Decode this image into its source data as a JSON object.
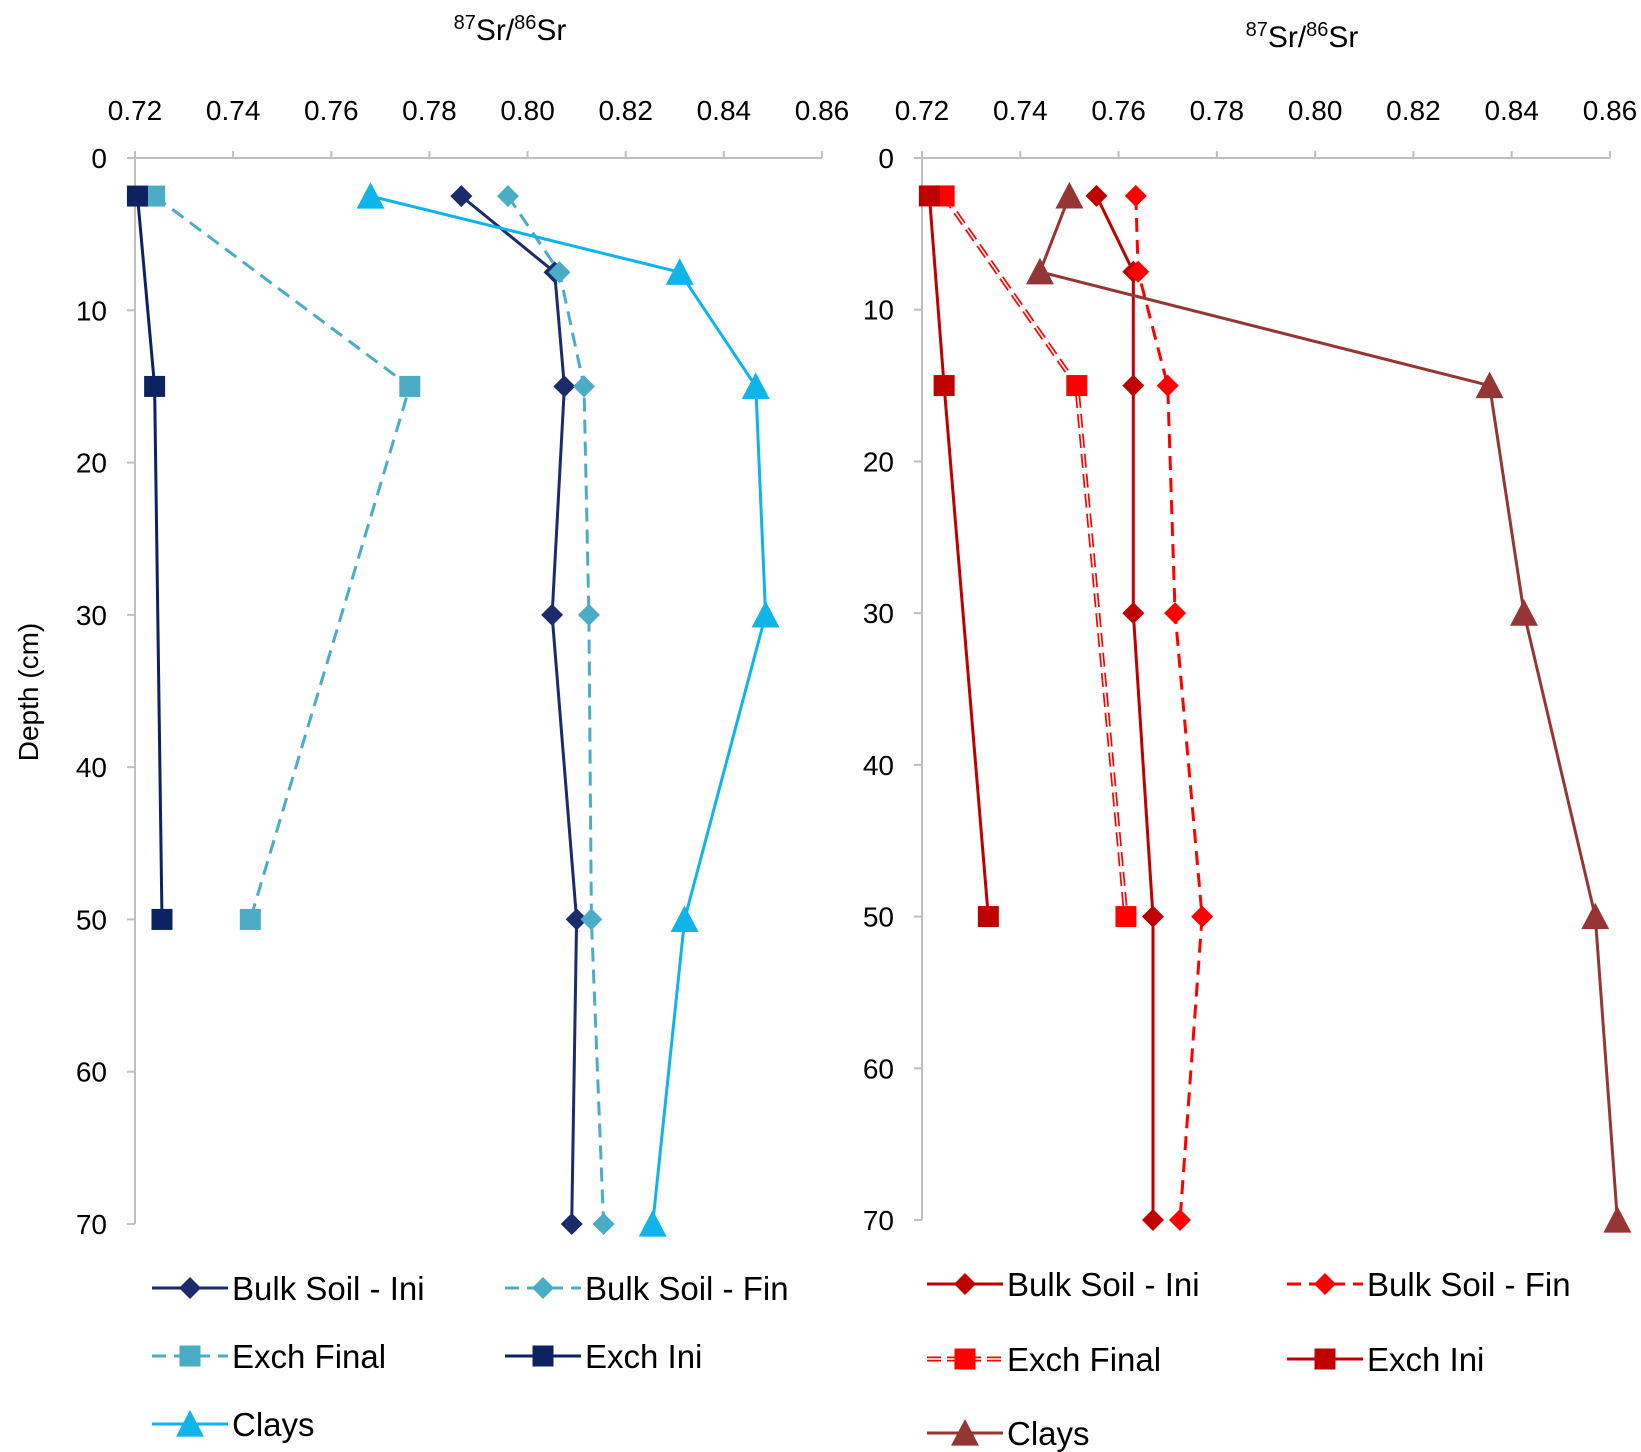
{
  "chart_data": [
    {
      "type": "line",
      "title": "87Sr/86Sr",
      "title_parts": {
        "sup1": "87",
        "base1": "Sr/",
        "sup2": "86",
        "base2": "Sr"
      },
      "xlabel": "",
      "ylabel": "Depth (cm)",
      "x_axis_position": "top",
      "y_reversed": true,
      "xlim": [
        0.72,
        0.86
      ],
      "ylim": [
        0,
        70
      ],
      "x_ticks": [
        "0.72",
        "0.74",
        "0.76",
        "0.78",
        "0.80",
        "0.82",
        "0.84",
        "0.86"
      ],
      "y_ticks": [
        "0",
        "10",
        "20",
        "30",
        "40",
        "50",
        "60",
        "70"
      ],
      "grid": false,
      "legend_position": "bottom",
      "series": [
        {
          "name": "Bulk Soil - Ini",
          "color": "#1a2c6b",
          "marker": "diamond",
          "dash": "solid",
          "points": [
            [
              0.7865,
              2.5
            ],
            [
              0.8055,
              7.5
            ],
            [
              0.8075,
              15
            ],
            [
              0.805,
              30
            ],
            [
              0.81,
              50
            ],
            [
              0.809,
              70
            ]
          ]
        },
        {
          "name": "Bulk Soil - Fin",
          "color": "#4bacc6",
          "marker": "diamond",
          "dash": "dashed",
          "points": [
            [
              0.796,
              2.5
            ],
            [
              0.8065,
              7.5
            ],
            [
              0.8115,
              15
            ],
            [
              0.8125,
              30
            ],
            [
              0.813,
              50
            ],
            [
              0.8155,
              70
            ]
          ]
        },
        {
          "name": "Exch Final",
          "color": "#4bacc6",
          "marker": "square",
          "dash": "dashed",
          "points": [
            [
              0.724,
              2.5
            ],
            [
              0.776,
              15
            ],
            [
              0.7435,
              50
            ]
          ]
        },
        {
          "name": "Exch Ini",
          "color": "#0d2260",
          "marker": "square",
          "dash": "solid",
          "points": [
            [
              0.7205,
              2.5
            ],
            [
              0.724,
              15
            ],
            [
              0.7255,
              50
            ]
          ]
        },
        {
          "name": "Clays",
          "color": "#0fb4e8",
          "marker": "triangle",
          "dash": "solid",
          "points": [
            [
              0.768,
              2.5
            ],
            [
              0.831,
              7.5
            ],
            [
              0.8465,
              15
            ],
            [
              0.8485,
              30
            ],
            [
              0.832,
              50
            ],
            [
              0.8255,
              70
            ]
          ]
        }
      ]
    },
    {
      "type": "line",
      "title": "87Sr/86Sr",
      "title_parts": {
        "sup1": "87",
        "base1": "Sr/",
        "sup2": "86",
        "base2": "Sr"
      },
      "xlabel": "",
      "ylabel": "",
      "x_axis_position": "top",
      "y_reversed": true,
      "xlim": [
        0.72,
        0.86
      ],
      "ylim": [
        0,
        70
      ],
      "x_ticks": [
        "0.72",
        "0.74",
        "0.76",
        "0.78",
        "0.80",
        "0.82",
        "0.84",
        "0.86"
      ],
      "y_ticks": [
        "0",
        "10",
        "20",
        "30",
        "40",
        "50",
        "60",
        "70"
      ],
      "grid": false,
      "legend_position": "bottom",
      "series": [
        {
          "name": "Bulk Soil - Ini",
          "color": "#c00000",
          "marker": "diamond",
          "dash": "solid",
          "points": [
            [
              0.7555,
              2.5
            ],
            [
              0.763,
              7.5
            ],
            [
              0.763,
              15
            ],
            [
              0.763,
              30
            ],
            [
              0.767,
              50
            ],
            [
              0.767,
              70
            ]
          ]
        },
        {
          "name": "Bulk Soil - Fin",
          "color": "#ff0000",
          "marker": "diamond",
          "dash": "dashed",
          "points": [
            [
              0.7635,
              2.5
            ],
            [
              0.764,
              7.5
            ],
            [
              0.77,
              15
            ],
            [
              0.7715,
              30
            ],
            [
              0.777,
              50
            ],
            [
              0.7725,
              70
            ]
          ]
        },
        {
          "name": "Exch Final",
          "color": "#ff0000",
          "marker": "square",
          "dash": "double",
          "points": [
            [
              0.7245,
              2.5
            ],
            [
              0.7515,
              15
            ],
            [
              0.7615,
              50
            ]
          ]
        },
        {
          "name": "Exch Ini",
          "color": "#c00000",
          "marker": "square",
          "dash": "solid",
          "points": [
            [
              0.7215,
              2.5
            ],
            [
              0.7245,
              15
            ],
            [
              0.7335,
              50
            ]
          ]
        },
        {
          "name": "Clays",
          "color": "#963634",
          "marker": "triangle",
          "dash": "solid",
          "points": [
            [
              0.75,
              2.5
            ],
            [
              0.744,
              7.5
            ],
            [
              0.8355,
              15
            ],
            [
              0.8425,
              30
            ],
            [
              0.857,
              50
            ],
            [
              0.8615,
              70
            ]
          ]
        }
      ]
    }
  ]
}
